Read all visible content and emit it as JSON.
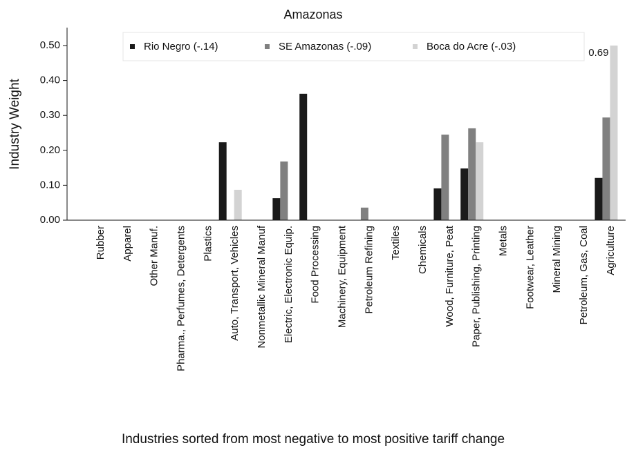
{
  "chart_data": {
    "type": "bar",
    "title": "Amazonas",
    "xlabel": "Industries sorted from most negative to most positive tariff change",
    "ylabel": "Industry Weight",
    "categories": [
      "Rubber",
      "Apparel",
      "Other Manuf.",
      "Pharma., Perfumes, Detergents",
      "Plastics",
      "Auto, Transport, Vehicles",
      "Nonmetallic Mineral Manuf",
      "Electric, Electronic Equip.",
      "Food Processing",
      "Machinery, Equipment",
      "Petroleum Refining",
      "Textiles",
      "Chemicals",
      "Wood, Furniture, Peat",
      "Paper, Publishing, Printing",
      "Metals",
      "Footwear, Leather",
      "Mineral Mining",
      "Petroleum, Gas, Coal",
      "Agriculture"
    ],
    "series": [
      {
        "name": "Rio Negro (-.14)",
        "color": "#1a1a1a",
        "values": [
          0,
          0,
          0,
          0,
          0,
          0.223,
          0,
          0.063,
          0.362,
          0,
          0,
          0,
          0,
          0.091,
          0.148,
          0,
          0,
          0,
          0,
          0.121
        ]
      },
      {
        "name": "SE Amazonas (-.09)",
        "color": "#808080",
        "values": [
          0,
          0,
          0,
          0,
          0,
          0,
          0,
          0.168,
          0,
          0,
          0.036,
          0,
          0,
          0.245,
          0.263,
          0,
          0,
          0,
          0,
          0.294
        ]
      },
      {
        "name": "Boca do Acre (-.03)",
        "color": "#d3d3d3",
        "values": [
          0,
          0,
          0,
          0,
          0,
          0.087,
          0,
          0,
          0,
          0,
          0,
          0,
          0,
          0,
          0.223,
          0,
          0,
          0,
          0,
          0.69
        ],
        "value_labels": [
          null,
          null,
          null,
          null,
          null,
          null,
          null,
          null,
          null,
          null,
          null,
          null,
          null,
          null,
          null,
          null,
          null,
          null,
          null,
          "0.69"
        ]
      }
    ],
    "ylim": [
      0,
      0.5
    ],
    "yticks": [
      {
        "value": 0,
        "label": "0.00"
      },
      {
        "value": 0.1,
        "label": "0.10"
      },
      {
        "value": 0.2,
        "label": "0.20"
      },
      {
        "value": 0.3,
        "label": "0.30"
      },
      {
        "value": 0.4,
        "label": "0.40"
      },
      {
        "value": 0.5,
        "label": "0.50"
      }
    ],
    "legend": "top"
  }
}
